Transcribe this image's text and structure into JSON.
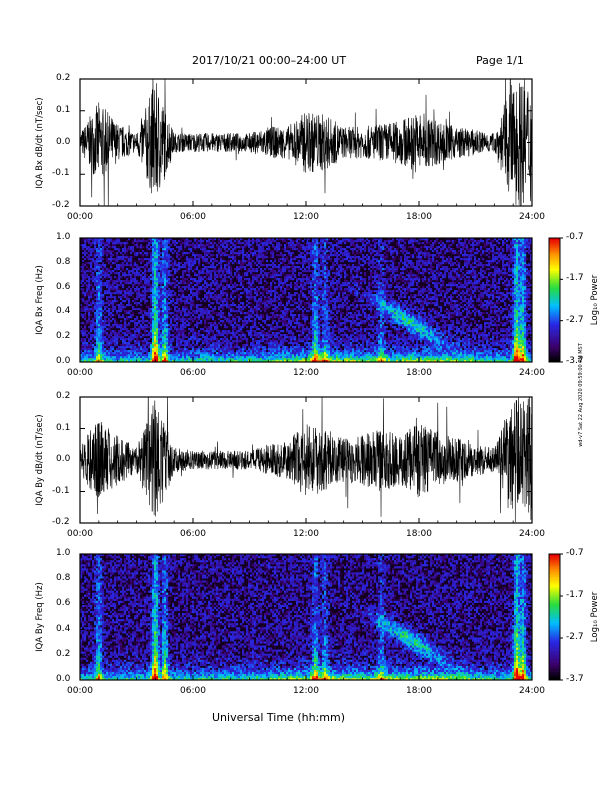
{
  "header": {
    "title": "2017/10/21  00:00–24:00 UT",
    "page": "Page 1/1"
  },
  "stamp": "wd-v7 Sat 22 Aug 2020 09:59:00 PM MST",
  "xlabel": "Universal Time (hh:mm)",
  "chart_data": [
    {
      "type": "line",
      "ylabel": "IQA Bx dB/dt (nT/sec)",
      "xlim": [
        0,
        24
      ],
      "ylim": [
        -0.2,
        0.2
      ],
      "xticks": [
        "00:00",
        "06:00",
        "12:00",
        "18:00",
        "24:00"
      ],
      "yticks": [
        "-0.2",
        "-0.1",
        "0.0",
        "0.1",
        "0.2"
      ],
      "x": [
        0,
        1,
        2,
        3,
        4,
        5,
        6,
        7,
        8,
        9,
        10,
        11,
        12,
        13,
        14,
        15,
        16,
        17,
        18,
        19,
        20,
        21,
        22,
        23,
        24
      ],
      "envelope": [
        0.03,
        0.13,
        0.06,
        0.03,
        0.2,
        0.03,
        0.03,
        0.03,
        0.03,
        0.03,
        0.05,
        0.05,
        0.1,
        0.09,
        0.05,
        0.05,
        0.06,
        0.07,
        0.1,
        0.07,
        0.05,
        0.04,
        0.03,
        0.2,
        0.2
      ]
    },
    {
      "type": "heatmap",
      "ylabel": "IQA Bx Freq (Hz)",
      "xlim": [
        0,
        24
      ],
      "ylim": [
        0,
        1
      ],
      "xticks": [
        "00:00",
        "06:00",
        "12:00",
        "18:00",
        "24:00"
      ],
      "yticks": [
        "0.0",
        "0.2",
        "0.4",
        "0.6",
        "0.8",
        "1.0"
      ],
      "colorbar": {
        "label": "Log₁₀ Power",
        "ticks": [
          "-0.7",
          "-1.7",
          "-2.7",
          "-3.7"
        ],
        "range": [
          -3.7,
          -0.7
        ]
      }
    },
    {
      "type": "line",
      "ylabel": "IQA By dB/dt (nT/sec)",
      "xlim": [
        0,
        24
      ],
      "ylim": [
        -0.2,
        0.2
      ],
      "xticks": [
        "00:00",
        "06:00",
        "12:00",
        "18:00",
        "24:00"
      ],
      "yticks": [
        "-0.2",
        "-0.1",
        "0.0",
        "0.1",
        "0.2"
      ],
      "x": [
        0,
        1,
        2,
        3,
        4,
        5,
        6,
        7,
        8,
        9,
        10,
        11,
        12,
        13,
        14,
        15,
        16,
        17,
        18,
        19,
        20,
        21,
        22,
        23,
        24
      ],
      "envelope": [
        0.04,
        0.14,
        0.08,
        0.04,
        0.2,
        0.04,
        0.03,
        0.03,
        0.03,
        0.03,
        0.05,
        0.06,
        0.12,
        0.1,
        0.07,
        0.08,
        0.1,
        0.08,
        0.12,
        0.09,
        0.07,
        0.05,
        0.04,
        0.2,
        0.2
      ]
    },
    {
      "type": "heatmap",
      "ylabel": "IQA By Freq (Hz)",
      "xlim": [
        0,
        24
      ],
      "ylim": [
        0,
        1
      ],
      "xticks": [
        "00:00",
        "06:00",
        "12:00",
        "18:00",
        "24:00"
      ],
      "yticks": [
        "0.0",
        "0.2",
        "0.4",
        "0.6",
        "0.8",
        "1.0"
      ],
      "colorbar": {
        "label": "Log₁₀ Power",
        "ticks": [
          "-0.7",
          "-1.7",
          "-2.7",
          "-3.7"
        ],
        "range": [
          -3.7,
          -0.7
        ]
      }
    }
  ]
}
